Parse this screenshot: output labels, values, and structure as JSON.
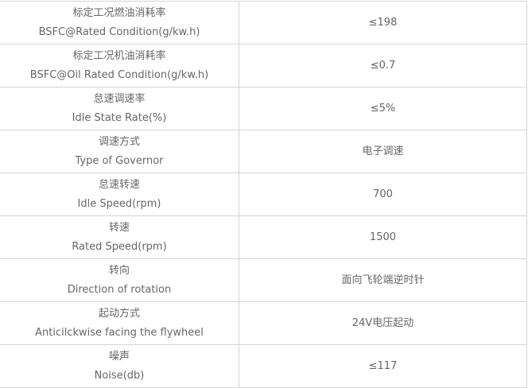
{
  "rows": [
    {
      "zh": "标定工况燃油消耗率",
      "en": "BSFC@Rated Condition(g/kw.h)",
      "value": "≤198"
    },
    {
      "zh": "标定工况机油消耗率",
      "en": "BSFC@Oil Rated Condition(g/kw.h)",
      "value": "≤0.7"
    },
    {
      "zh": "怠速调速率",
      "en": "Idle State Rate(%)",
      "value": "≤5%"
    },
    {
      "zh": "调速方式",
      "en": "Type of Governor",
      "value": "电子调速"
    },
    {
      "zh": "怠速转速",
      "en": "Idle Speed(rpm)",
      "value": "700"
    },
    {
      "zh": "转速",
      "en": "Rated Speed(rpm)",
      "value": "1500"
    },
    {
      "zh": "转向",
      "en": "Direction of rotation",
      "value": "面向飞轮端逆时针"
    },
    {
      "zh": "起动方式",
      "en": "Anticilckwise facing the flywheel",
      "value": "24V电压起动"
    },
    {
      "zh": "噪声",
      "en": "Noise(db)",
      "value": "≤117"
    }
  ]
}
